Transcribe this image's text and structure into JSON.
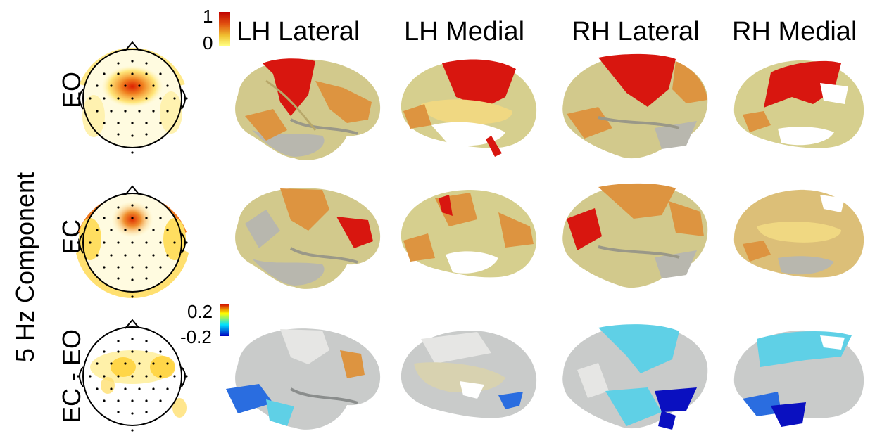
{
  "figure": {
    "side_label": "5 Hz Component",
    "columns": [
      "LH Lateral",
      "LH Medial",
      "RH Lateral",
      "RH Medial"
    ],
    "rows": [
      {
        "label": "EO",
        "map": "warm"
      },
      {
        "label": "EC",
        "map": "warm"
      },
      {
        "label": "EC - EO",
        "map": "diff"
      }
    ],
    "colorbar_warm": {
      "max": "1",
      "min": "0",
      "colors": [
        "#ffff80",
        "#f0c030",
        "#e05010",
        "#c00000"
      ]
    },
    "colorbar_diff": {
      "max": "0.2",
      "min": "-0.2",
      "colors": [
        "#d00000",
        "#ffff00",
        "#00e0ff",
        "#0000c0"
      ]
    }
  },
  "colors": {
    "brain_gray": "#b8b7ae",
    "brain_tan": "#d6cf8e",
    "orange": "#dd9440",
    "red": "#d8160f",
    "light_blue": "#5fd0e6",
    "blue": "#2a6de0",
    "dark_blue": "#0a10c0"
  }
}
